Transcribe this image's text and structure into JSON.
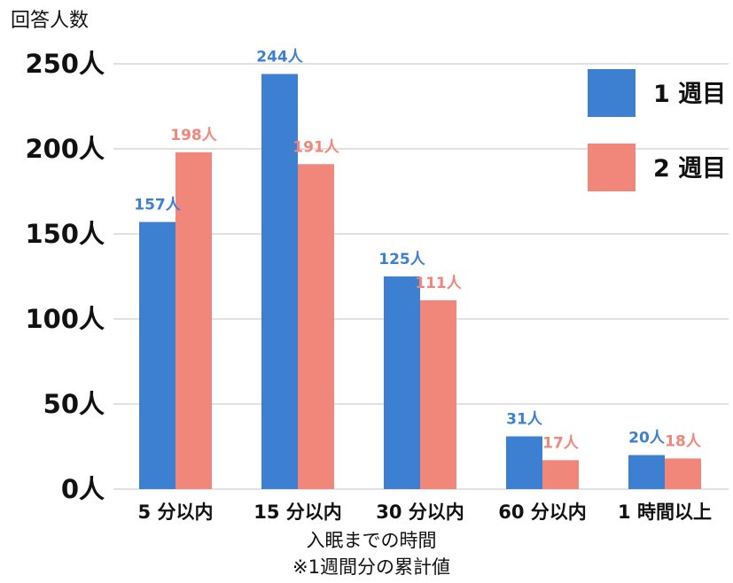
{
  "chart_data": {
    "type": "bar",
    "ylabel": "回答人数",
    "xlabel": "入眠までの時間",
    "xlabel_note": "※1週間分の累計値",
    "categories": [
      "5 分以内",
      "15 分以内",
      "30 分以内",
      "60 分以内",
      "1 時間以上"
    ],
    "series": [
      {
        "name": "1 週目",
        "color": "#3d7fd0",
        "values": [
          157,
          244,
          125,
          31,
          20
        ],
        "data_labels": [
          "157人",
          "244人",
          "125人",
          "31人",
          "20人"
        ]
      },
      {
        "name": "2 週目",
        "color": "#f0877a",
        "values": [
          198,
          191,
          111,
          17,
          18
        ],
        "data_labels": [
          "198人",
          "191人",
          "111人",
          "17人",
          "18人"
        ]
      }
    ],
    "ylim": [
      0,
      250
    ],
    "yticks": [
      0,
      50,
      100,
      150,
      200,
      250
    ],
    "ytick_labels": [
      "0人",
      "50人",
      "100人",
      "150人",
      "200人",
      "250人"
    ],
    "grid": true,
    "gridline_color": "#d9d9d9",
    "legend_position": "top-right"
  }
}
